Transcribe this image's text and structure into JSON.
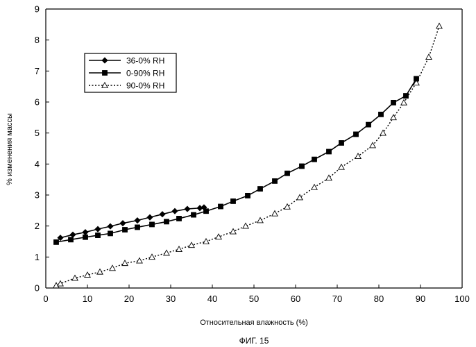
{
  "chart_data": {
    "type": "line",
    "title": "",
    "caption": "ФИГ. 15",
    "xlabel": "Относительная влажность (%)",
    "ylabel": "% изменения массы",
    "xlim": [
      0,
      100
    ],
    "ylim": [
      0,
      9
    ],
    "xticks": [
      0,
      10,
      20,
      30,
      40,
      50,
      60,
      70,
      80,
      90,
      100
    ],
    "yticks": [
      0,
      1,
      2,
      3,
      4,
      5,
      6,
      7,
      8,
      9
    ],
    "grid": false,
    "legend_position": "upper-left",
    "series": [
      {
        "name": "36-0% RH",
        "marker": "diamond-filled",
        "line_style": "solid",
        "color": "#000000",
        "x": [
          3.5,
          6.5,
          9.5,
          12.5,
          15.5,
          18.5,
          22,
          25,
          28,
          31,
          34,
          37,
          38
        ],
        "y": [
          1.62,
          1.72,
          1.8,
          1.9,
          1.99,
          2.09,
          2.18,
          2.28,
          2.38,
          2.48,
          2.55,
          2.58,
          2.6
        ]
      },
      {
        "name": "0-90% RH",
        "marker": "square-filled",
        "line_style": "solid",
        "color": "#000000",
        "x": [
          2.5,
          6,
          9.5,
          12.5,
          15.5,
          19,
          22,
          25.5,
          29,
          32,
          35.5,
          38.5,
          42,
          45,
          48.5,
          51.5,
          55,
          58,
          61.5,
          64.5,
          68,
          71,
          74.5,
          77.5,
          80.5,
          83.5,
          86.5,
          89
        ],
        "y": [
          1.48,
          1.56,
          1.64,
          1.7,
          1.76,
          1.88,
          1.96,
          2.05,
          2.14,
          2.24,
          2.36,
          2.48,
          2.63,
          2.8,
          2.98,
          3.2,
          3.45,
          3.7,
          3.93,
          4.15,
          4.4,
          4.68,
          4.96,
          5.27,
          5.6,
          5.98,
          6.2,
          6.75
        ]
      },
      {
        "name": "90-0% RH",
        "marker": "triangle-open",
        "line_style": "dotted",
        "color": "#000000",
        "x": [
          2.5,
          3.5,
          7,
          10,
          13,
          16,
          19,
          22.5,
          25.5,
          29,
          32,
          35,
          38.5,
          41.5,
          45,
          48,
          51.5,
          55,
          58,
          61,
          64.5,
          68,
          71,
          75,
          78.5,
          81,
          83.5,
          86,
          89,
          92,
          94.5
        ],
        "y": [
          0.08,
          0.14,
          0.32,
          0.42,
          0.52,
          0.64,
          0.8,
          0.88,
          1.0,
          1.13,
          1.25,
          1.38,
          1.5,
          1.65,
          1.82,
          2.0,
          2.18,
          2.4,
          2.62,
          2.92,
          3.25,
          3.55,
          3.9,
          4.25,
          4.6,
          5.0,
          5.5,
          5.98,
          6.62,
          7.45,
          8.45
        ]
      }
    ]
  }
}
